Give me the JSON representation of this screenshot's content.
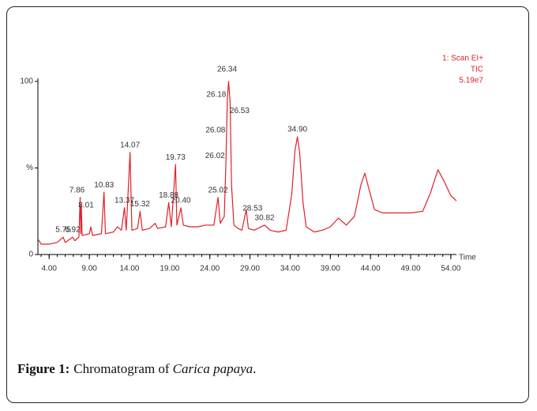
{
  "chart_data": {
    "type": "line",
    "x": [
      2.6,
      3,
      4,
      5,
      5.75,
      6,
      6.92,
      7.2,
      7.7,
      7.86,
      7.95,
      8.01,
      8.1,
      9,
      9.2,
      9.4,
      10.5,
      10.83,
      11,
      12,
      12.5,
      13,
      13.37,
      13.6,
      14.07,
      14.3,
      15,
      15.32,
      15.6,
      16.5,
      17.2,
      17.5,
      18.5,
      18.88,
      19.2,
      19.73,
      19.9,
      20.4,
      20.7,
      21.5,
      22.5,
      23.5,
      24.5,
      25.02,
      25.3,
      25.8,
      26.02,
      26.08,
      26.18,
      26.34,
      26.53,
      26.7,
      27,
      27.5,
      28,
      28.53,
      28.8,
      29.5,
      30.82,
      31.5,
      32.5,
      33.5,
      34.2,
      34.6,
      34.9,
      35.2,
      35.6,
      36,
      37,
      38,
      39,
      40,
      41,
      42,
      42.8,
      43.3,
      43.8,
      44.5,
      45.5,
      47,
      49,
      50.5,
      51.5,
      52.4,
      53.2,
      54,
      54.7
    ],
    "series": [
      {
        "name": "TIC",
        "color": "#e0202a",
        "values": [
          9,
          6,
          6,
          7,
          10,
          7,
          10,
          8,
          10,
          33,
          12,
          28,
          11,
          12,
          16,
          11,
          12,
          36,
          12,
          13,
          16,
          14,
          27,
          14,
          59,
          14,
          15,
          25,
          14,
          15,
          18,
          15,
          16,
          30,
          16,
          52,
          17,
          27,
          17,
          16,
          16,
          17,
          17,
          33,
          18,
          22,
          55,
          70,
          90,
          100,
          88,
          40,
          17,
          15,
          14,
          26,
          15,
          14,
          17,
          14,
          13,
          14,
          35,
          60,
          68,
          58,
          30,
          16,
          13,
          14,
          16,
          21,
          17,
          22,
          40,
          47,
          38,
          26,
          24,
          24,
          24,
          25,
          36,
          49,
          42,
          34,
          31
        ]
      }
    ],
    "xlim": [
      2.6,
      54.7
    ],
    "ylim": [
      0,
      100
    ],
    "xticks": [
      {
        "value": 4,
        "label": "4.00"
      },
      {
        "value": 9,
        "label": "9.00"
      },
      {
        "value": 14,
        "label": "14.00"
      },
      {
        "value": 19,
        "label": "19.00"
      },
      {
        "value": 24,
        "label": "24.00"
      },
      {
        "value": 29,
        "label": "29.00"
      },
      {
        "value": 34,
        "label": "34.00"
      },
      {
        "value": 39,
        "label": "39.00"
      },
      {
        "value": 44,
        "label": "44.00"
      },
      {
        "value": 49,
        "label": "49.00"
      },
      {
        "value": 54,
        "label": "54.00"
      }
    ],
    "yticks": [
      0,
      {
        "value": 50,
        "label": "%"
      },
      100
    ],
    "x_label": "Time",
    "header": [
      "1: Scan EI+",
      "TIC",
      "5.19e7"
    ],
    "peaks": [
      {
        "value": 5.75,
        "label": "5.75"
      },
      {
        "value": 6.92,
        "label": "6.92"
      },
      {
        "value": 7.86,
        "label": "7.86"
      },
      {
        "value": 8.01,
        "label": "8.01"
      },
      {
        "value": 10.83,
        "label": "10.83"
      },
      {
        "value": 13.37,
        "label": "13.37"
      },
      {
        "value": 14.07,
        "label": "14.07"
      },
      {
        "value": 15.32,
        "label": "15.32"
      },
      {
        "value": 18.88,
        "label": "18.88"
      },
      {
        "value": 19.73,
        "label": "19.73"
      },
      {
        "value": 20.4,
        "label": "20.40"
      },
      {
        "value": 25.02,
        "label": "25.02"
      },
      {
        "value": 26.02,
        "label": "26.02"
      },
      {
        "value": 26.08,
        "label": "26.08"
      },
      {
        "value": 26.18,
        "label": "26.18"
      },
      {
        "value": 26.34,
        "label": "26.34"
      },
      {
        "value": 26.53,
        "label": "26.53"
      },
      {
        "value": 28.53,
        "label": "28.53"
      },
      {
        "value": 30.82,
        "label": "30.82"
      },
      {
        "value": 34.9,
        "label": "34.90"
      }
    ]
  },
  "caption": {
    "label": "Figure 1:",
    "text": "Chromatogram of",
    "species": "Carica papaya",
    "end": "."
  }
}
